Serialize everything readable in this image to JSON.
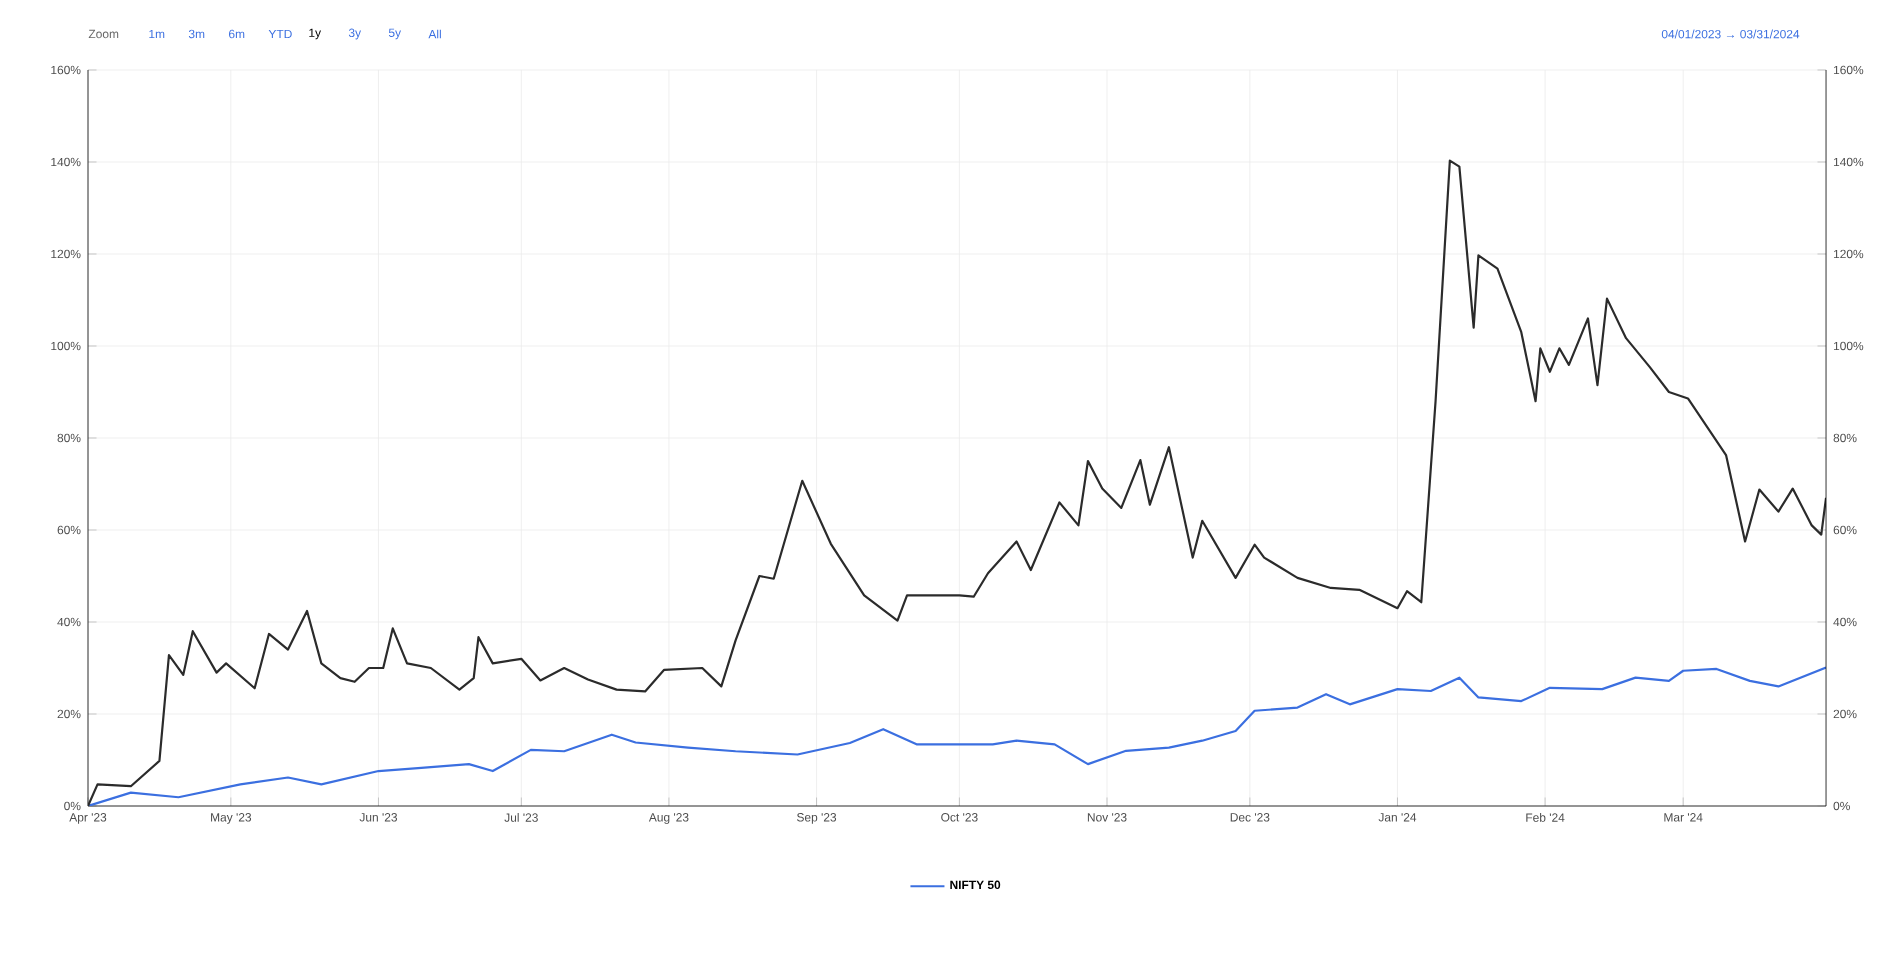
{
  "chart_data": {
    "type": "line",
    "annotations": [
      "Zoom",
      "1m",
      "3m",
      "6m",
      "YTD",
      "1y",
      "3y",
      "5y",
      "All",
      "04/01/2023 → 03/31/2024"
    ],
    "series": [
      {
        "name": "NIFTY 50",
        "color": "#3b6fe0",
        "x": [
          "2023-04-01",
          "2023-04-10",
          "2023-04-20",
          "2023-05-03",
          "2023-05-13",
          "2023-05-20",
          "2023-06-01",
          "2023-06-10",
          "2023-06-20",
          "2023-06-25",
          "2023-07-03",
          "2023-07-10",
          "2023-07-20",
          "2023-07-25",
          "2023-08-05",
          "2023-08-15",
          "2023-08-28",
          "2023-09-08",
          "2023-09-15",
          "2023-09-22",
          "2023-10-01",
          "2023-10-08",
          "2023-10-13",
          "2023-10-21",
          "2023-10-28",
          "2023-11-05",
          "2023-11-14",
          "2023-11-21",
          "2023-11-28",
          "2023-12-02",
          "2023-12-11",
          "2023-12-17",
          "2023-12-22",
          "2024-01-01",
          "2024-01-08",
          "2024-01-14",
          "2024-01-18",
          "2024-01-27",
          "2024-02-02",
          "2024-02-13",
          "2024-02-20",
          "2024-02-27",
          "2024-03-01",
          "2024-03-08",
          "2024-03-15",
          "2024-03-21",
          "2024-03-31"
        ],
        "values": [
          0,
          2.9,
          1.9,
          4.7,
          6.2,
          4.7,
          7.6,
          8.3,
          9.1,
          7.6,
          12.2,
          11.9,
          15.5,
          13.8,
          12.7,
          11.9,
          11.2,
          13.7,
          16.7,
          13.4,
          13.4,
          13.4,
          14.2,
          13.4,
          9.1,
          12,
          12.7,
          14.2,
          16.3,
          20.7,
          21.4,
          24.3,
          22.1,
          25.4,
          25,
          27.9,
          23.6,
          22.8,
          25.7,
          25.4,
          27.9,
          27.2,
          29.4,
          29.8,
          27.2,
          26,
          30.1
        ]
      },
      {
        "color": "#2b2b2b",
        "x": [
          "2023-04-01",
          "2023-04-03",
          "2023-04-10",
          "2023-04-16",
          "2023-04-18",
          "2023-04-21",
          "2023-04-23",
          "2023-04-28",
          "2023-04-30",
          "2023-05-06",
          "2023-05-09",
          "2023-05-13",
          "2023-05-17",
          "2023-05-20",
          "2023-05-24",
          "2023-05-27",
          "2023-05-30",
          "2023-06-02",
          "2023-06-04",
          "2023-06-07",
          "2023-06-12",
          "2023-06-18",
          "2023-06-21",
          "2023-06-22",
          "2023-06-25",
          "2023-07-01",
          "2023-07-05",
          "2023-07-10",
          "2023-07-15",
          "2023-07-21",
          "2023-07-27",
          "2023-07-31",
          "2023-08-08",
          "2023-08-12",
          "2023-08-15",
          "2023-08-20",
          "2023-08-23",
          "2023-08-29",
          "2023-09-04",
          "2023-09-11",
          "2023-09-18",
          "2023-09-20",
          "2023-10-01",
          "2023-10-04",
          "2023-10-07",
          "2023-10-13",
          "2023-10-16",
          "2023-10-22",
          "2023-10-26",
          "2023-10-28",
          "2023-10-31",
          "2023-11-04",
          "2023-11-08",
          "2023-11-10",
          "2023-11-14",
          "2023-11-19",
          "2023-11-21",
          "2023-11-28",
          "2023-12-02",
          "2023-12-04",
          "2023-12-11",
          "2023-12-18",
          "2023-12-24",
          "2024-01-01",
          "2024-01-03",
          "2024-01-06",
          "2024-01-09",
          "2024-01-12",
          "2024-01-14",
          "2024-01-17",
          "2024-01-18",
          "2024-01-22",
          "2024-01-27",
          "2024-01-30",
          "2024-01-31",
          "2024-02-02",
          "2024-02-04",
          "2024-02-06",
          "2024-02-10",
          "2024-02-12",
          "2024-02-14",
          "2024-02-18",
          "2024-02-23",
          "2024-02-27",
          "2024-03-02",
          "2024-03-10",
          "2024-03-14",
          "2024-03-17",
          "2024-03-21",
          "2024-03-24",
          "2024-03-28",
          "2024-03-30",
          "2024-03-31"
        ],
        "values": [
          0,
          4.7,
          4.3,
          9.8,
          32.8,
          28.5,
          38,
          29,
          31,
          25.6,
          37.4,
          34,
          42.4,
          31,
          27.8,
          27,
          30,
          30,
          38.6,
          31,
          30,
          25.3,
          27.8,
          36.7,
          31,
          32,
          27.3,
          30,
          27.5,
          25.3,
          24.9,
          29.6,
          30,
          26,
          36,
          50,
          49.4,
          70.7,
          57,
          45.8,
          40.3,
          45.8,
          45.8,
          45.5,
          50.6,
          57.5,
          51.3,
          66,
          61,
          75,
          69,
          64.8,
          75.2,
          65.5,
          78,
          54,
          62,
          49.6,
          56.8,
          54,
          49.6,
          47.4,
          47,
          43,
          46.7,
          44.3,
          88,
          140.3,
          139,
          104,
          119.7,
          116.8,
          103,
          88,
          99.5,
          94.4,
          99.5,
          95.9,
          106,
          91.5,
          110.3,
          101.7,
          95.4,
          90,
          88.6,
          76.3,
          57.5,
          68.8,
          64,
          69,
          61,
          59,
          67
        ]
      }
    ],
    "xlim": [
      "2023-04-01",
      "2024-03-31"
    ],
    "xticks": [
      {
        "value": "2023-04-01",
        "label": "Apr '23"
      },
      {
        "value": "2023-05-01",
        "label": "May '23"
      },
      {
        "value": "2023-06-01",
        "label": "Jun '23"
      },
      {
        "value": "2023-07-01",
        "label": "Jul '23"
      },
      {
        "value": "2023-08-01",
        "label": "Aug '23"
      },
      {
        "value": "2023-09-01",
        "label": "Sep '23"
      },
      {
        "value": "2023-10-01",
        "label": "Oct '23"
      },
      {
        "value": "2023-11-01",
        "label": "Nov '23"
      },
      {
        "value": "2023-12-01",
        "label": "Dec '23"
      },
      {
        "value": "2024-01-01",
        "label": "Jan '24"
      },
      {
        "value": "2024-02-01",
        "label": "Feb '24"
      },
      {
        "value": "2024-03-01",
        "label": "Mar '24"
      }
    ],
    "ylim": [
      0,
      160
    ],
    "yticks": [
      {
        "value": 0,
        "label": "0%"
      },
      {
        "value": 20,
        "label": "20%"
      },
      {
        "value": 40,
        "label": "40%"
      },
      {
        "value": 60,
        "label": "60%"
      },
      {
        "value": 80,
        "label": "80%"
      },
      {
        "value": 100,
        "label": "100%"
      },
      {
        "value": 120,
        "label": "120%"
      },
      {
        "value": 140,
        "label": "140%"
      },
      {
        "value": 160,
        "label": "160%"
      }
    ],
    "y2lim": [
      0,
      160
    ],
    "y2ticks": [
      {
        "value": 0,
        "label": "0%"
      },
      {
        "value": 20,
        "label": "20%"
      },
      {
        "value": 40,
        "label": "40%"
      },
      {
        "value": 60,
        "label": "60%"
      },
      {
        "value": 80,
        "label": "80%"
      },
      {
        "value": 100,
        "label": "100%"
      },
      {
        "value": 120,
        "label": "120%"
      },
      {
        "value": 140,
        "label": "140%"
      },
      {
        "value": 160,
        "label": "160%"
      }
    ],
    "grid": true,
    "legend": "bottom",
    "marker": "none",
    "line_style": "solid"
  }
}
